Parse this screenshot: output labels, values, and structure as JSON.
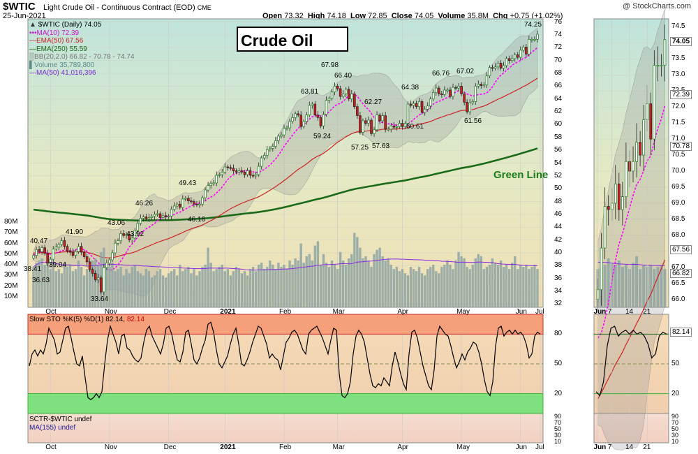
{
  "header": {
    "symbol": "$WTIC",
    "subtitle": "Light Crude Oil - Continuous Contract (EOD)",
    "exchange": "CME",
    "date": "25-Jun-2021",
    "open_label": "Open",
    "open": "73.32",
    "high_label": "High",
    "high": "74.18",
    "low_label": "Low",
    "low": "72.85",
    "close_label": "Close",
    "close": "74.05",
    "volume_label": "Volume",
    "volume": "35.8M",
    "chg_label": "Chg",
    "chg": "+0.75 (+1.02%)",
    "credit": "@ StockCharts.com"
  },
  "main_legend": {
    "price": "$WTIC (Daily) 74.05",
    "ma10": "MA(10) 72.39",
    "ema50": "EMA(50) 67.56",
    "ema250": "EMA(250) 55.59",
    "bb": "BB(20,2.0) 66.82 - 70.78 - 74.74",
    "volume": "Volume 35,789,800",
    "vol_ma": "MA(50) 41,016,396"
  },
  "annotations": {
    "title_box": "Crude Oil",
    "green_line": "Green Line"
  },
  "colors": {
    "up": "#1e7a1e",
    "down": "#d21a1a",
    "ma10": "#ff00ff",
    "ema50": "#cc2222",
    "ema250": "#1a6a1a",
    "volume": "#8ea5a5",
    "vol_ma": "#8a2be2",
    "sto": "#000000",
    "sto_high_zone": "#f5a07a",
    "sto_low_zone": "#7ee07e"
  },
  "sto_legend": {
    "label": "Slow STO %K(5) %D(1) 82.14,",
    "value": "82.14"
  },
  "sctr_legend": {
    "sctr": "SCTR-$WTIC undef",
    "ma": "MA(155) undef"
  },
  "chart_data": [
    {
      "type": "candlestick",
      "title": "$WTIC (Daily)",
      "x_labels": [
        "Oct",
        "Nov",
        "Dec",
        "2021",
        "Feb",
        "Mar",
        "Apr",
        "May",
        "Jun",
        "Jul"
      ],
      "y_ticks": [
        32,
        34,
        36,
        38,
        40,
        42,
        44,
        46,
        48,
        50,
        52,
        54,
        56,
        58,
        60,
        62,
        64,
        66,
        68,
        70,
        72,
        74,
        76
      ],
      "ylim": [
        31.5,
        76.5
      ],
      "volume_ticks": [
        "10M",
        "20M",
        "30M",
        "40M",
        "50M",
        "60M",
        "70M",
        "80M"
      ],
      "price_labels": [
        "40.47",
        "41.90",
        "38.41",
        "39.04",
        "36.63",
        "33.64",
        "43.06",
        "43.92",
        "46.26",
        "46.16",
        "49.43",
        "63.81",
        "59.24",
        "67.98",
        "66.40",
        "62.27",
        "57.25",
        "57.63",
        "64.38",
        "60.61",
        "66.76",
        "67.02",
        "61.56",
        "74.25"
      ],
      "closes": [
        39.6,
        40.5,
        40.2,
        40.8,
        39.9,
        38.4,
        39.0,
        40.6,
        40.9,
        41.3,
        41.9,
        41.0,
        40.3,
        40.1,
        39.6,
        40.2,
        41.0,
        40.1,
        39.4,
        38.6,
        37.4,
        36.8,
        35.8,
        36.1,
        33.9,
        37.7,
        38.4,
        38.9,
        40.0,
        41.5,
        41.9,
        43.0,
        42.7,
        42.9,
        42.0,
        42.3,
        43.5,
        44.6,
        45.4,
        45.6,
        45.3,
        45.5,
        45.7,
        46.0,
        46.1,
        45.5,
        45.8,
        45.6,
        45.7,
        46.8,
        47.3,
        47.6,
        47.1,
        48.4,
        48.5,
        48.1,
        48.0,
        47.6,
        47.5,
        47.6,
        48.6,
        49.8,
        50.5,
        50.8,
        50.9,
        52.1,
        52.2,
        52.6,
        53.4,
        53.3,
        53.2,
        52.8,
        52.6,
        52.8,
        52.6,
        52.2,
        52.8,
        52.1,
        52.0,
        52.2,
        53.5,
        54.8,
        55.2,
        56.1,
        56.3,
        56.6,
        57.5,
        58.2,
        58.4,
        59.4,
        59.5,
        60.5,
        61.1,
        61.7,
        61.5,
        59.7,
        60.5,
        61.5,
        63.0,
        63.2,
        61.5,
        61.1,
        59.8,
        61.6,
        63.8,
        64.1,
        65.1,
        66.0,
        65.6,
        64.4,
        64.8,
        65.5,
        64.0,
        64.8,
        62.8,
        61.4,
        58.8,
        60.6,
        60.2,
        60.7,
        58.6,
        59.2,
        61.5,
        60.6,
        61.4,
        59.3,
        59.3,
        59.8,
        59.6,
        59.7,
        60.2,
        59.7,
        60.2,
        63.2,
        63.0,
        63.3,
        62.8,
        63.6,
        61.9,
        62.4,
        62.9,
        64.0,
        65.0,
        65.7,
        64.8,
        64.7,
        65.4,
        65.4,
        64.4,
        65.8,
        65.7,
        66.0,
        64.8,
        63.5,
        62.0,
        63.4,
        63.6,
        66.0,
        66.3,
        66.1,
        66.2,
        67.6,
        68.9,
        68.8,
        69.0,
        69.6,
        68.8,
        69.2,
        70.3,
        70.0,
        70.3,
        70.9,
        70.5,
        71.6,
        72.1,
        71.0,
        73.3,
        73.3,
        73.3,
        74.1
      ],
      "volume_millions": [
        38,
        42,
        44,
        46,
        40,
        48,
        36,
        42,
        34,
        36,
        32,
        42,
        38,
        40,
        34,
        36,
        44,
        38,
        30,
        36,
        40,
        44,
        46,
        40,
        52,
        56,
        40,
        38,
        42,
        34,
        36,
        38,
        30,
        36,
        32,
        38,
        40,
        34,
        32,
        30,
        36,
        34,
        28,
        30,
        34,
        36,
        30,
        28,
        32,
        34,
        36,
        30,
        40,
        34,
        36,
        38,
        32,
        36,
        30,
        34,
        38,
        40,
        56,
        42,
        34,
        36,
        38,
        40,
        34,
        36,
        30,
        34,
        38,
        36,
        32,
        34,
        30,
        36,
        38,
        34,
        40,
        42,
        36,
        38,
        44,
        40,
        36,
        42,
        38,
        40,
        36,
        44,
        40,
        46,
        44,
        60,
        42,
        48,
        50,
        44,
        58,
        62,
        40,
        50,
        42,
        38,
        44,
        40,
        36,
        52,
        44,
        40,
        46,
        50,
        70,
        66,
        56,
        46,
        48,
        44,
        38,
        50,
        54,
        56,
        48,
        44,
        46,
        40,
        36,
        38,
        34,
        36,
        32,
        30,
        38,
        36,
        34,
        38,
        32,
        30,
        36,
        38,
        40,
        34,
        32,
        38,
        40,
        44,
        40,
        36,
        44,
        52,
        48,
        46,
        38,
        36,
        40,
        46,
        50,
        48,
        36,
        38,
        40,
        46,
        42,
        40,
        44,
        38,
        40,
        36,
        42,
        48,
        36,
        40,
        38,
        40,
        36,
        38,
        40,
        36
      ]
    },
    {
      "type": "line",
      "title": "Slow STO %K(5) %D(1)",
      "y_ticks": [
        20,
        50,
        80
      ],
      "ylim": [
        0,
        100
      ],
      "overbought_zone": [
        80,
        100
      ],
      "oversold_zone": [
        0,
        20
      ],
      "values": [
        48,
        60,
        64,
        58,
        64,
        60,
        70,
        86,
        80,
        74,
        60,
        62,
        74,
        86,
        88,
        76,
        62,
        50,
        48,
        58,
        36,
        16,
        14,
        16,
        20,
        16,
        22,
        50,
        74,
        88,
        80,
        72,
        60,
        78,
        80,
        66,
        64,
        58,
        54,
        52,
        56,
        72,
        84,
        88,
        78,
        72,
        66,
        60,
        70,
        86,
        88,
        80,
        66,
        54,
        52,
        62,
        82,
        84,
        70,
        54,
        50,
        56,
        66,
        74,
        90,
        92,
        82,
        64,
        50,
        46,
        52,
        58,
        70,
        80,
        86,
        70,
        50,
        48,
        54,
        62,
        72,
        80,
        88,
        86,
        78,
        70,
        56,
        60,
        56,
        54,
        44,
        58,
        72,
        76,
        82,
        84,
        80,
        72,
        64,
        60,
        80,
        84,
        86,
        88,
        82,
        76,
        68,
        60,
        74,
        86,
        84,
        40,
        18,
        16,
        20,
        32,
        60,
        78,
        84,
        80,
        72,
        56,
        40,
        28,
        26,
        30,
        28,
        36,
        32,
        28,
        48,
        62,
        52,
        40,
        30,
        24,
        60,
        82,
        84,
        76,
        62,
        48,
        38,
        28,
        24,
        44,
        78,
        88,
        84,
        80,
        78,
        68,
        56,
        46,
        52,
        60,
        54,
        62,
        66,
        72,
        70,
        62,
        50,
        34,
        22,
        18,
        32,
        68,
        86,
        88,
        78,
        82,
        84,
        80,
        84,
        80,
        82,
        78,
        70,
        56,
        60,
        78,
        82,
        80
      ]
    },
    {
      "type": "line",
      "title": "SCTR-$WTIC",
      "y_ticks": [
        10,
        30,
        50,
        70,
        90
      ],
      "values": []
    },
    {
      "type": "candlestick",
      "title": "$WTIC zoom",
      "x_labels": [
        "Jun",
        "7",
        "14",
        "21"
      ],
      "y_ticks": [
        66.0,
        66.5,
        67.0,
        67.5,
        68.0,
        68.5,
        69.0,
        69.5,
        70.0,
        70.5,
        71.0,
        71.5,
        72.0,
        72.5,
        73.0,
        73.5,
        74.0,
        74.5
      ],
      "ylim": [
        65.75,
        74.75
      ],
      "value_tags": [
        "74.05",
        "72.39",
        "70.78",
        "67.56",
        "66.82"
      ],
      "closes": [
        66.3,
        67.6,
        68.9,
        68.8,
        69.0,
        69.6,
        68.8,
        69.2,
        70.3,
        70.0,
        70.3,
        70.9,
        70.5,
        71.6,
        72.1,
        71.0,
        73.3,
        73.3,
        73.3,
        74.1
      ]
    }
  ]
}
